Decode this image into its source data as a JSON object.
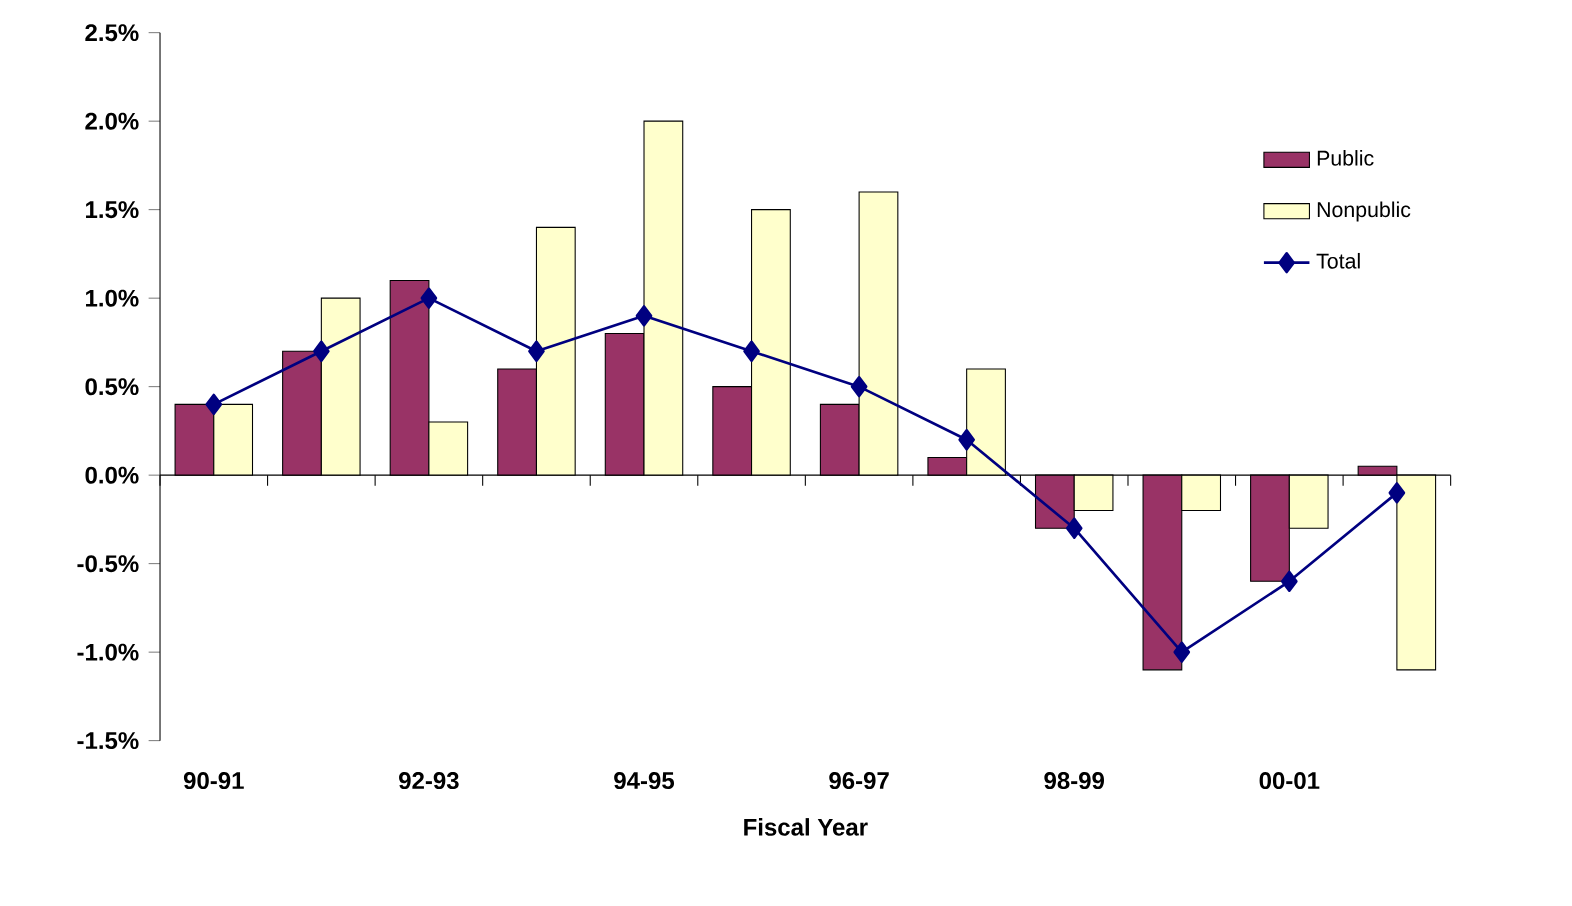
{
  "chart_data": {
    "type": "bar",
    "xlabel": "Fiscal Year",
    "categories": [
      "90-91",
      null,
      "92-93",
      null,
      "94-95",
      null,
      "96-97",
      null,
      "98-99",
      null,
      "00-01",
      null
    ],
    "series": [
      {
        "name": "Public",
        "color": "#993366",
        "values": [
          0.4,
          0.7,
          1.1,
          0.6,
          0.8,
          0.5,
          0.4,
          0.1,
          -0.3,
          -1.1,
          -0.6,
          0.05
        ]
      },
      {
        "name": "Nonpublic",
        "color": "#ffffcc",
        "values": [
          0.4,
          1.0,
          0.3,
          1.4,
          2.0,
          1.5,
          1.6,
          0.6,
          -0.2,
          -0.2,
          -0.3,
          -1.1
        ]
      },
      {
        "name": "Total",
        "type": "line",
        "color": "#000080",
        "marker": "diamond",
        "values": [
          0.4,
          0.7,
          1.0,
          0.7,
          0.9,
          0.7,
          0.5,
          0.2,
          -0.3,
          -1.0,
          -0.6,
          -0.1
        ]
      }
    ],
    "ylim": [
      -1.5,
      2.5
    ],
    "yticks": [
      {
        "value": -1.5,
        "label": "-1.5%"
      },
      {
        "value": -1.0,
        "label": "-1.0%"
      },
      {
        "value": -0.5,
        "label": "-0.5%"
      },
      {
        "value": 0,
        "label": "0.0%"
      },
      {
        "value": 0.5,
        "label": "0.5%"
      },
      {
        "value": 1.0,
        "label": "1.0%"
      },
      {
        "value": 1.5,
        "label": "1.5%"
      },
      {
        "value": 2.0,
        "label": "2.0%"
      },
      {
        "value": 2.5,
        "label": "2.5%"
      }
    ],
    "legend": "right"
  }
}
